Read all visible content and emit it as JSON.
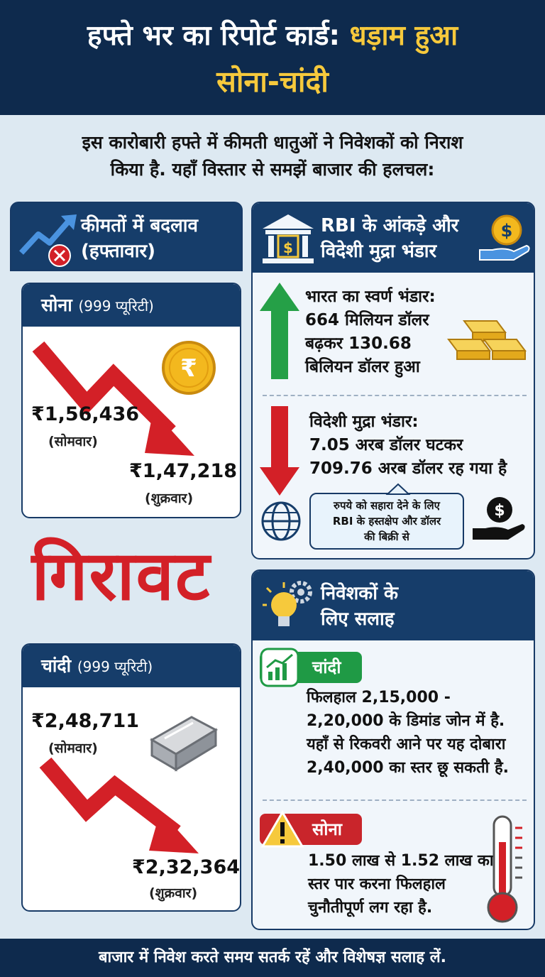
{
  "header": {
    "title_line1_white": "हफ्ते भर का रिपोर्ट कार्ड:",
    "title_line1_gold": "धड़ाम हुआ",
    "title_line2": "सोना-चांदी"
  },
  "intro": {
    "line1": "इस कारोबारी हफ्ते में कीमती धातुओं ने निवेशकों को निराश",
    "line2": "किया है. यहाँ विस्तार से समझें बाजार की हलचल:"
  },
  "price_panel": {
    "title_line1": "कीमतों में बदलाव",
    "title_line2": "(हफ्तावार)",
    "gold": {
      "name": "सोना",
      "purity": "(999 प्यूरिटी)",
      "monday_price": "₹1,56,436",
      "monday_label": "(सोमवार)",
      "friday_price": "₹1,47,218",
      "friday_label": "(शुक्रवार)",
      "coin_symbol": "₹"
    },
    "fall_word": "गिरावट",
    "silver": {
      "name": "चांदी",
      "purity": "(999 प्यूरिटी)",
      "monday_price": "₹2,48,711",
      "monday_label": "(सोमवार)",
      "friday_price": "₹2,32,364",
      "friday_label": "(शुक्रवार)"
    }
  },
  "rbi_panel": {
    "title_line1": "RBI के आंकड़े और",
    "title_line2": "विदेशी मुद्रा भंडार",
    "gold_reserve": {
      "line1": "भारत का स्वर्ण भंडार:",
      "line2": "664 मिलियन डॉलर",
      "line3": "बढ़कर 130.68",
      "line4": "बिलियन डॉलर हुआ"
    },
    "forex_reserve": {
      "line1": "विदेशी मुद्रा भंडार:",
      "line2": "7.05 अरब डॉलर घटकर",
      "line3": "709.76 अरब डॉलर रह गया है"
    },
    "note": {
      "line1": "रुपये को सहारा देने के लिए",
      "line2": "RBI के हस्तक्षेप और डॉलर",
      "line3": "की बिक्री से"
    }
  },
  "advice_panel": {
    "title_line1": "निवेशकों के",
    "title_line2": "लिए सलाह",
    "silver": {
      "tag": "चांदी",
      "line1": "फिलहाल 2,15,000 -",
      "line2": "2,20,000 के डिमांड जोन में है.",
      "line3": "यहाँ से रिकवरी आने पर यह दोबारा",
      "line4": "2,40,000 का स्तर छू सकती है."
    },
    "gold": {
      "tag": "सोना",
      "line1": "1.50 लाख से 1.52 लाख का",
      "line2": "स्तर पार करना फिलहाल",
      "line3": "चुनौतीपूर्ण लग रहा है."
    }
  },
  "footer": {
    "text": "बाजार में निवेश करते समय सतर्क रहें और विशेषज्ञ सलाह लें."
  },
  "colors": {
    "navy": "#0e2a4d",
    "gold_text": "#f6c93c",
    "red": "#d32027",
    "green": "#1f9a45"
  }
}
